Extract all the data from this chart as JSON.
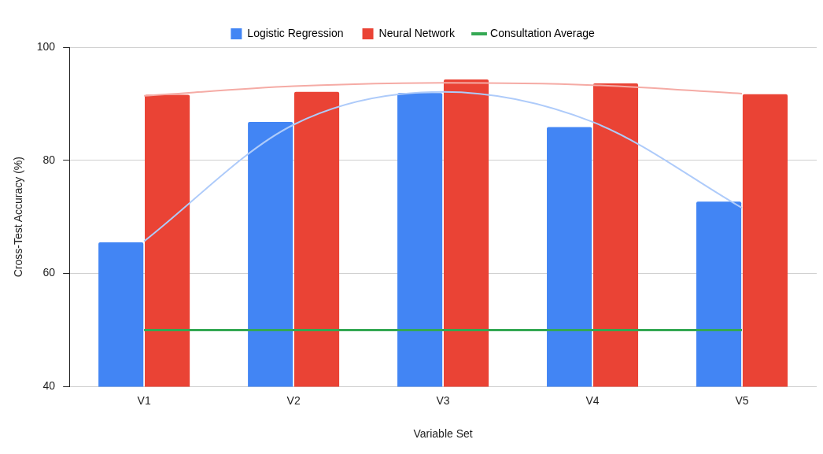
{
  "chart_data": {
    "type": "bar",
    "xlabel": "Variable Set",
    "ylabel": "Cross-Test Accuracy (%)",
    "categories": [
      "V1",
      "V2",
      "V3",
      "V4",
      "V5"
    ],
    "ylim": [
      40,
      100
    ],
    "yticks": [
      40,
      60,
      80,
      100
    ],
    "grid": "y",
    "legend": "top",
    "marker": "none",
    "series": [
      {
        "name": "Logistic Regression",
        "color": "#4285f4",
        "values": [
          65.5,
          86.8,
          91.9,
          85.9,
          72.7
        ]
      },
      {
        "name": "Neural Network",
        "color": "#ea4335",
        "values": [
          91.6,
          92.1,
          94.3,
          93.6,
          91.7
        ]
      },
      {
        "name": "Consultation Average",
        "type": "line",
        "color": "#34a853",
        "values": [
          50,
          50,
          50,
          50,
          50
        ]
      },
      {
        "type": "line",
        "color": "#aecbfa",
        "values": [
          65.7,
          86.3,
          92.1,
          86.8,
          71.6
        ]
      },
      {
        "type": "line",
        "color": "#f5aba5",
        "values": [
          91.4,
          93.1,
          93.7,
          93.3,
          91.8
        ]
      }
    ]
  }
}
